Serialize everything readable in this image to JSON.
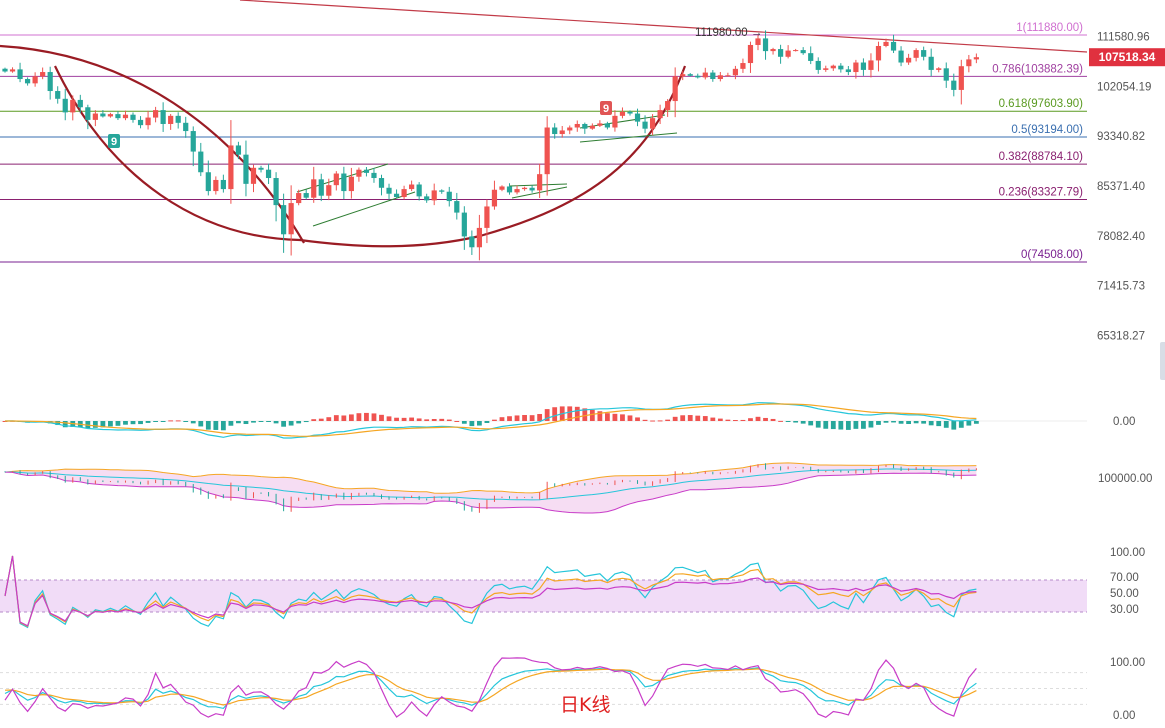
{
  "chart_data": {
    "type": "candlestick",
    "title": "",
    "period_label": "日K线",
    "price_axis": {
      "ticks": [
        111580.96,
        102054.19,
        93340.82,
        85371.4,
        78082.4,
        71415.73,
        65318.27
      ],
      "labels": [
        "111580.96",
        "102054.19",
        "93340.82",
        "85371.40",
        "78082.40",
        "71415.73",
        "65318.27"
      ],
      "current_price": 107518.34,
      "current_label": "107518.34"
    },
    "fibonacci": [
      {
        "ratio": "1",
        "price": 111880.0,
        "label": "1(111880.00)",
        "color": "#d070d0"
      },
      {
        "ratio": "0.786",
        "price": 103882.39,
        "label": "0.786(103882.39)",
        "color": "#a040a0"
      },
      {
        "ratio": "0.618",
        "price": 97603.9,
        "label": "0.618(97603.90)",
        "color": "#5a9a20"
      },
      {
        "ratio": "0.5",
        "price": 93194.0,
        "label": "0.5(93194.00)",
        "color": "#3a6fb0"
      },
      {
        "ratio": "0.382",
        "price": 88784.1,
        "label": "0.382(88784.10)",
        "color": "#8a2070"
      },
      {
        "ratio": "0.236",
        "price": 83327.79,
        "label": "0.236(83327.79)",
        "color": "#8a2070"
      },
      {
        "ratio": "0",
        "price": 74508.0,
        "label": "0(74508.00)",
        "color": "#7a2090"
      }
    ],
    "high_annotation": {
      "price": 111980.0,
      "label": "111980.00"
    },
    "td_markers": [
      {
        "text": "9",
        "color": "#26a69a"
      },
      {
        "text": "9",
        "color": "#e05555"
      }
    ],
    "closes": [
      104800,
      105200,
      103400,
      102600,
      103900,
      104700,
      101200,
      99800,
      97400,
      99600,
      98300,
      96100,
      97200,
      96700,
      97100,
      96400,
      97000,
      96100,
      95200,
      96500,
      97800,
      95400,
      96800,
      95600,
      94200,
      90800,
      87500,
      84600,
      86300,
      84900,
      91800,
      90300,
      85700,
      88200,
      87900,
      86600,
      82500,
      78300,
      82800,
      84300,
      83600,
      86400,
      83900,
      85500,
      87300,
      84600,
      86800,
      87900,
      87400,
      86600,
      85100,
      84200,
      83700,
      84900,
      85600,
      83800,
      83200,
      84700,
      84500,
      83100,
      81400,
      78000,
      76500,
      79200,
      82300,
      84800,
      85300,
      84400,
      84900,
      85100,
      84700,
      87200,
      94800,
      93700,
      94300,
      94800,
      95400,
      94600,
      95100,
      95500,
      94800,
      96800,
      97500,
      97200,
      95800,
      94600,
      96400,
      97800,
      99400,
      103900,
      104300,
      104000,
      103700,
      104600,
      103400,
      104100,
      104100,
      105300,
      106400,
      109900,
      111200,
      108700,
      109100,
      107600,
      108800,
      108900,
      108300,
      106800,
      105100,
      105400,
      105900,
      105200,
      104700,
      106500,
      105100,
      106900,
      109700,
      110500,
      108800,
      106500,
      107400,
      108900,
      107600,
      105100,
      105400,
      103100,
      101400,
      105800,
      107100,
      107518
    ]
  },
  "indicators": {
    "macd": {
      "zero_label": "0.00"
    },
    "boll": {
      "label": "100000.00"
    },
    "rsi": {
      "levels": [
        "100.00",
        "70.00",
        "50.00",
        "30.00"
      ]
    },
    "kdj": {
      "levels": [
        "100.00",
        "0.00"
      ]
    }
  },
  "colors": {
    "up": "#ef5350",
    "down": "#26a69a",
    "arc": "#9a1c24",
    "channel": "#2e7d32",
    "trendline": "#c23b48",
    "axis_text": "#555555",
    "price_tag": "#e0313f"
  }
}
